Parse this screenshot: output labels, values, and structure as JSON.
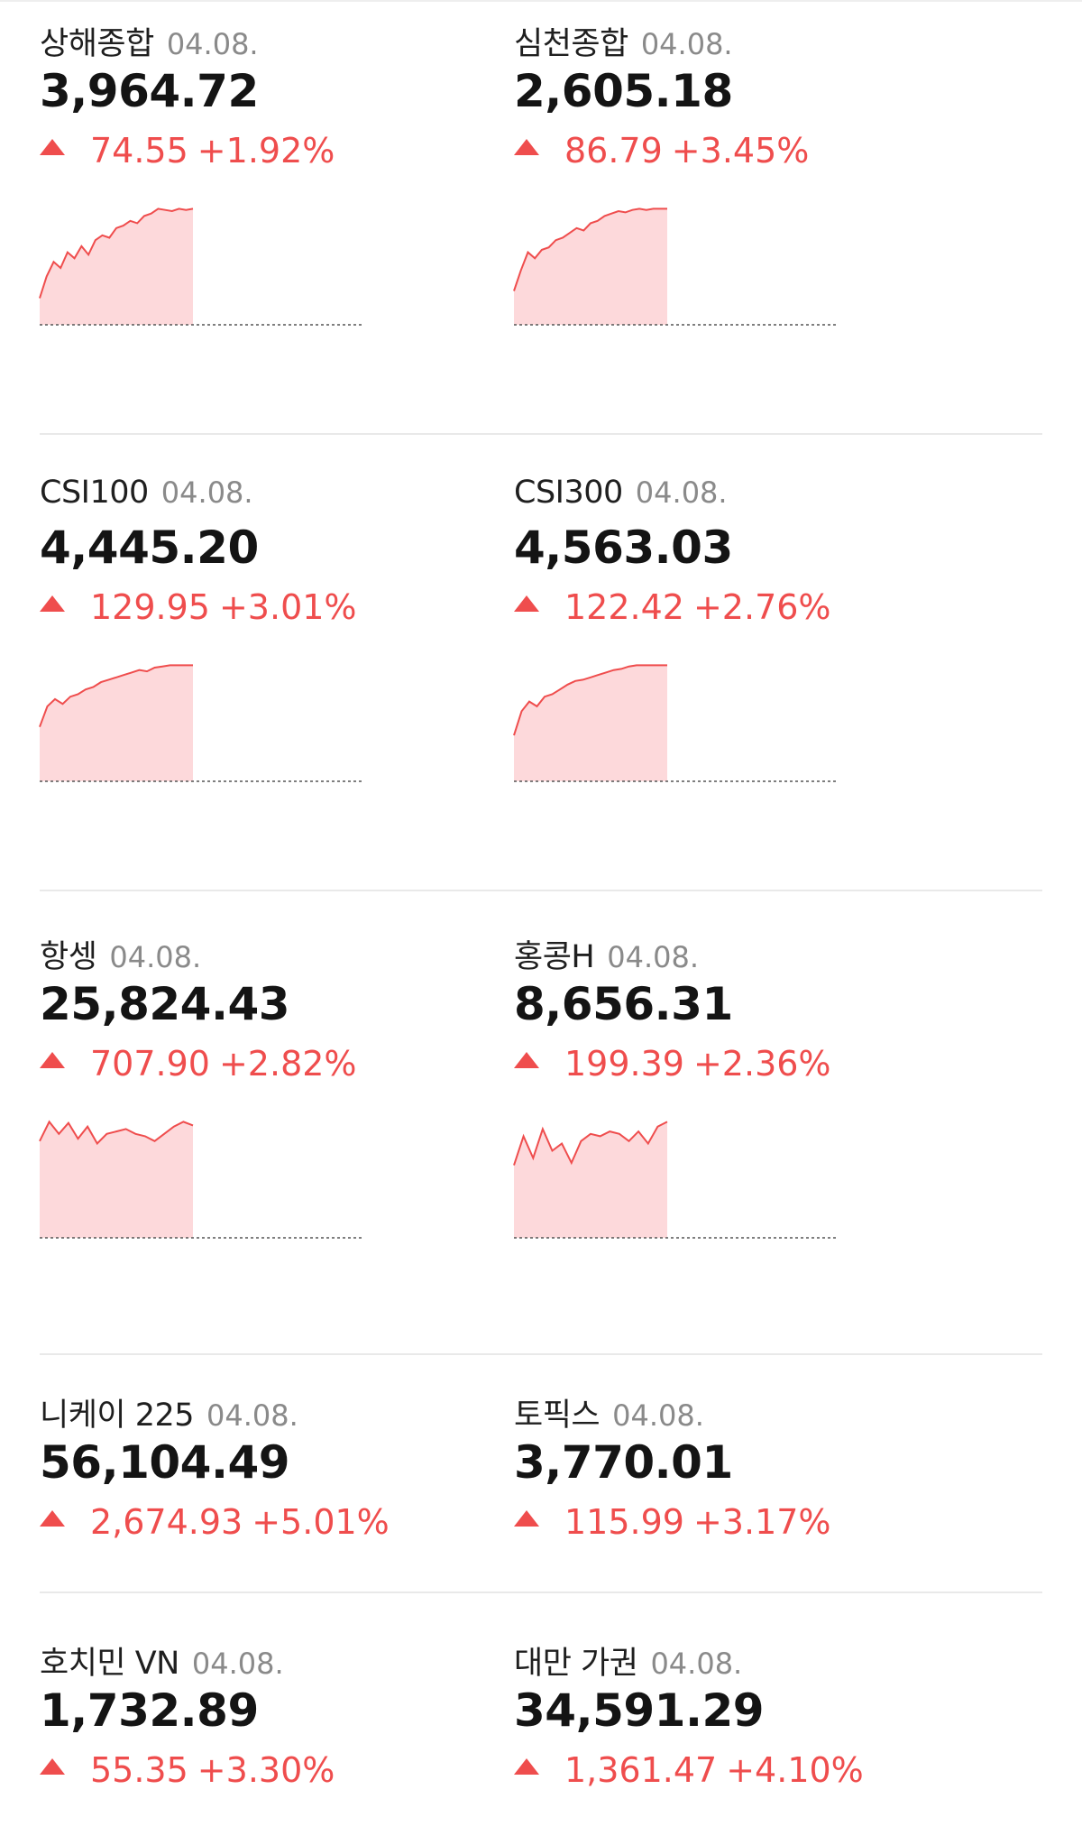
{
  "colors": {
    "up": "#ef4d4d",
    "area_fill": "#fdd9db",
    "divider": "#e9e9e9"
  },
  "rows": [
    {
      "cards": [
        {
          "name": "상해종합",
          "date": "04.08.",
          "value": "3,964.72",
          "change": "74.55",
          "pct": "+1.92%",
          "direction": "up",
          "spark": [
            0.22,
            0.4,
            0.52,
            0.47,
            0.6,
            0.55,
            0.65,
            0.58,
            0.7,
            0.74,
            0.72,
            0.8,
            0.82,
            0.86,
            0.84,
            0.9,
            0.92,
            0.96,
            0.95,
            0.94,
            0.96,
            0.95,
            0.96
          ]
        },
        {
          "name": "심천종합",
          "date": "04.08.",
          "value": "2,605.18",
          "change": "86.79",
          "pct": "+3.45%",
          "direction": "up",
          "spark": [
            0.28,
            0.45,
            0.6,
            0.55,
            0.62,
            0.64,
            0.7,
            0.72,
            0.76,
            0.8,
            0.78,
            0.84,
            0.86,
            0.9,
            0.92,
            0.94,
            0.93,
            0.95,
            0.96,
            0.95,
            0.96,
            0.96,
            0.96
          ]
        }
      ]
    },
    {
      "cards": [
        {
          "name": "CSI100",
          "date": "04.08.",
          "value": "4,445.20",
          "change": "129.95",
          "pct": "+3.01%",
          "direction": "up",
          "spark": [
            0.45,
            0.62,
            0.68,
            0.64,
            0.7,
            0.72,
            0.76,
            0.78,
            0.82,
            0.84,
            0.86,
            0.88,
            0.9,
            0.92,
            0.91,
            0.94,
            0.95,
            0.96,
            0.96,
            0.96,
            0.96
          ]
        },
        {
          "name": "CSI300",
          "date": "04.08.",
          "value": "4,563.03",
          "change": "122.42",
          "pct": "+2.76%",
          "direction": "up",
          "spark": [
            0.38,
            0.58,
            0.66,
            0.62,
            0.7,
            0.72,
            0.76,
            0.8,
            0.83,
            0.84,
            0.86,
            0.88,
            0.9,
            0.92,
            0.93,
            0.95,
            0.96,
            0.96,
            0.96,
            0.96,
            0.96
          ]
        }
      ]
    },
    {
      "cards": [
        {
          "name": "항셍",
          "date": "04.08.",
          "value": "25,824.43",
          "change": "707.90",
          "pct": "+2.82%",
          "direction": "up",
          "spark": [
            0.8,
            0.96,
            0.86,
            0.95,
            0.82,
            0.92,
            0.78,
            0.86,
            0.88,
            0.9,
            0.86,
            0.84,
            0.8,
            0.86,
            0.92,
            0.96,
            0.93
          ]
        },
        {
          "name": "홍콩H",
          "date": "04.08.",
          "value": "8,656.31",
          "change": "199.39",
          "pct": "+2.36%",
          "direction": "up",
          "spark": [
            0.6,
            0.84,
            0.66,
            0.9,
            0.72,
            0.78,
            0.62,
            0.8,
            0.86,
            0.84,
            0.88,
            0.86,
            0.8,
            0.88,
            0.78,
            0.92,
            0.96
          ]
        }
      ]
    },
    {
      "cards": [
        {
          "name": "니케이 225",
          "date": "04.08.",
          "value": "56,104.49",
          "change": "2,674.93",
          "pct": "+5.01%",
          "direction": "up"
        },
        {
          "name": "토픽스",
          "date": "04.08.",
          "value": "3,770.01",
          "change": "115.99",
          "pct": "+3.17%",
          "direction": "up"
        }
      ]
    },
    {
      "cards": [
        {
          "name": "호치민 VN",
          "date": "04.08.",
          "value": "1,732.89",
          "change": "55.35",
          "pct": "+3.30%",
          "direction": "up"
        },
        {
          "name": "대만 가권",
          "date": "04.08.",
          "value": "34,591.29",
          "change": "1,361.47",
          "pct": "+4.10%",
          "direction": "up"
        }
      ]
    }
  ]
}
